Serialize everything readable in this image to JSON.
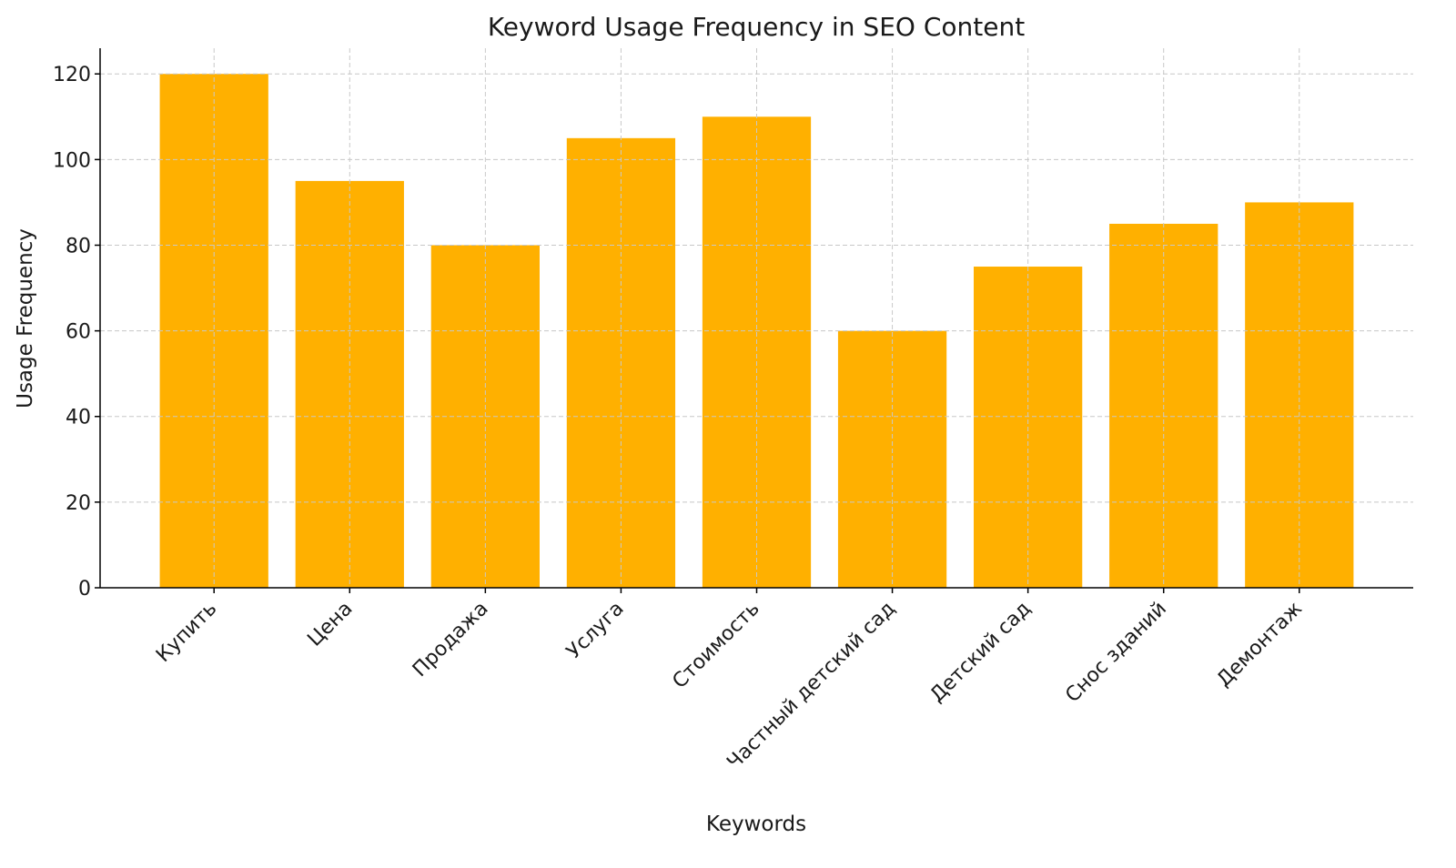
{
  "chart_data": {
    "type": "bar",
    "title": "Keyword Usage Frequency in SEO Content",
    "xlabel": "Keywords",
    "ylabel": "Usage Frequency",
    "categories": [
      "Купить",
      "Цена",
      "Продажа",
      "Услуга",
      "Стоимость",
      "Частный детский сад",
      "Детский сад",
      "Снос зданий",
      "Демонтаж"
    ],
    "values": [
      120,
      95,
      80,
      105,
      110,
      60,
      75,
      85,
      90
    ],
    "ylim": [
      0,
      126
    ],
    "yticks": [
      0,
      20,
      40,
      60,
      80,
      100,
      120
    ],
    "grid": true,
    "bar_color": "#FFB000",
    "grid_color": "#c8c8c8"
  }
}
